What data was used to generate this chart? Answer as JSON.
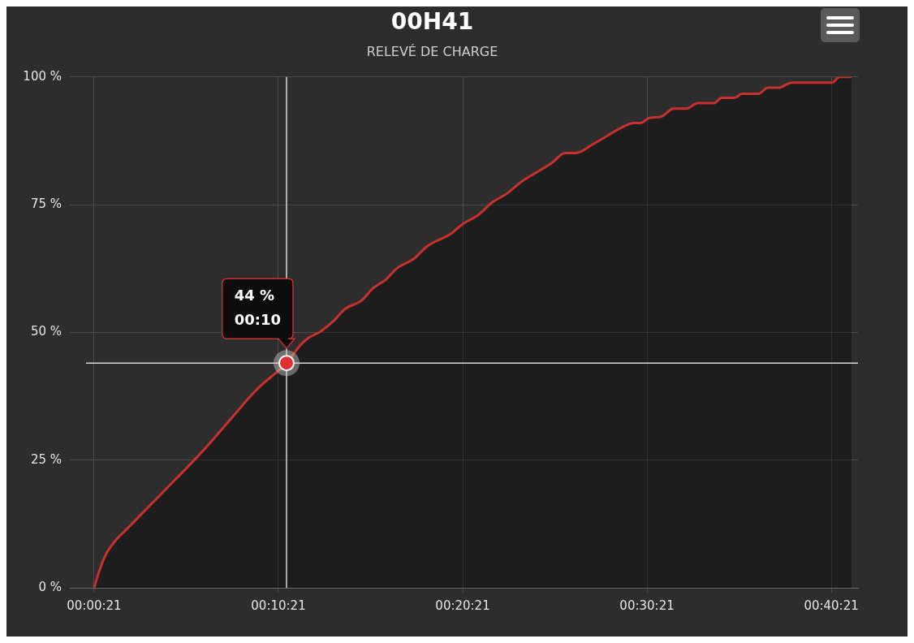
{
  "chart_data": {
    "type": "area",
    "title": "00H41",
    "subtitle": "RELEVÉ DE CHARGE",
    "x": [
      0.35,
      0.61,
      0.97,
      1.41,
      2.29,
      4.05,
      6.25,
      8.23,
      8.68,
      9.34,
      10.79,
      11.54,
      11.98,
      12.64,
      13.3,
      13.97,
      14.85,
      15.5,
      16.17,
      16.8,
      17.7,
      18.4,
      19.7,
      20.35,
      21.2,
      21.9,
      22.8,
      23.5,
      24.3,
      25.2,
      25.9,
      26.5,
      27.4,
      29.2,
      29.6,
      30.0,
      30.5,
      31.1,
      31.8,
      32.5,
      33.1,
      34.0,
      34.4,
      35.1,
      35.5,
      36.4,
      36.9,
      37.5,
      38.2,
      40.4,
      40.8,
      41.45
    ],
    "series": [
      {
        "color": "#c8302e",
        "values": [
          0,
          3.1,
          6.4,
          8.8,
          12.1,
          18.6,
          26.8,
          35,
          36.9,
          39.4,
          44,
          47.5,
          48.9,
          50.2,
          52.1,
          54.6,
          56.2,
          58.7,
          60.3,
          62.6,
          64.4,
          66.8,
          69.3,
          71.2,
          73,
          75.3,
          77.3,
          79.4,
          81.2,
          83.2,
          85.1,
          85.1,
          86.8,
          90.5,
          91,
          91,
          92,
          92.2,
          93.8,
          93.8,
          94.9,
          94.9,
          95.9,
          95.9,
          96.7,
          96.7,
          97.9,
          97.9,
          98.9,
          98.9,
          100,
          100
        ]
      }
    ],
    "xlim": [
      -0.97,
      41.8
    ],
    "xticks": [
      {
        "value": 0.35,
        "label": "00:00:21"
      },
      {
        "value": 10.35,
        "label": "00:10:21"
      },
      {
        "value": 20.35,
        "label": "00:20:21"
      },
      {
        "value": 30.35,
        "label": "00:30:21"
      },
      {
        "value": 40.35,
        "label": "00:40:21"
      }
    ],
    "ylim": [
      0,
      100
    ],
    "yticks": [
      {
        "value": 0,
        "label": "0 %"
      },
      {
        "value": 25,
        "label": "25 %"
      },
      {
        "value": 50,
        "label": "50 %"
      },
      {
        "value": 75,
        "label": "75 %"
      },
      {
        "value": 100,
        "label": "100 %"
      }
    ],
    "grid": true,
    "legend": false,
    "marker": "none",
    "line_style": "solid",
    "ref_lines": [
      {
        "axis": "x",
        "value": 10.79,
        "color": "#d8d8d8"
      },
      {
        "axis": "y",
        "value": 44,
        "color": "#d8d8d8"
      }
    ],
    "annotations": [
      {
        "text": "44 %\n00:10",
        "x": 10.79,
        "y": 44
      }
    ]
  }
}
